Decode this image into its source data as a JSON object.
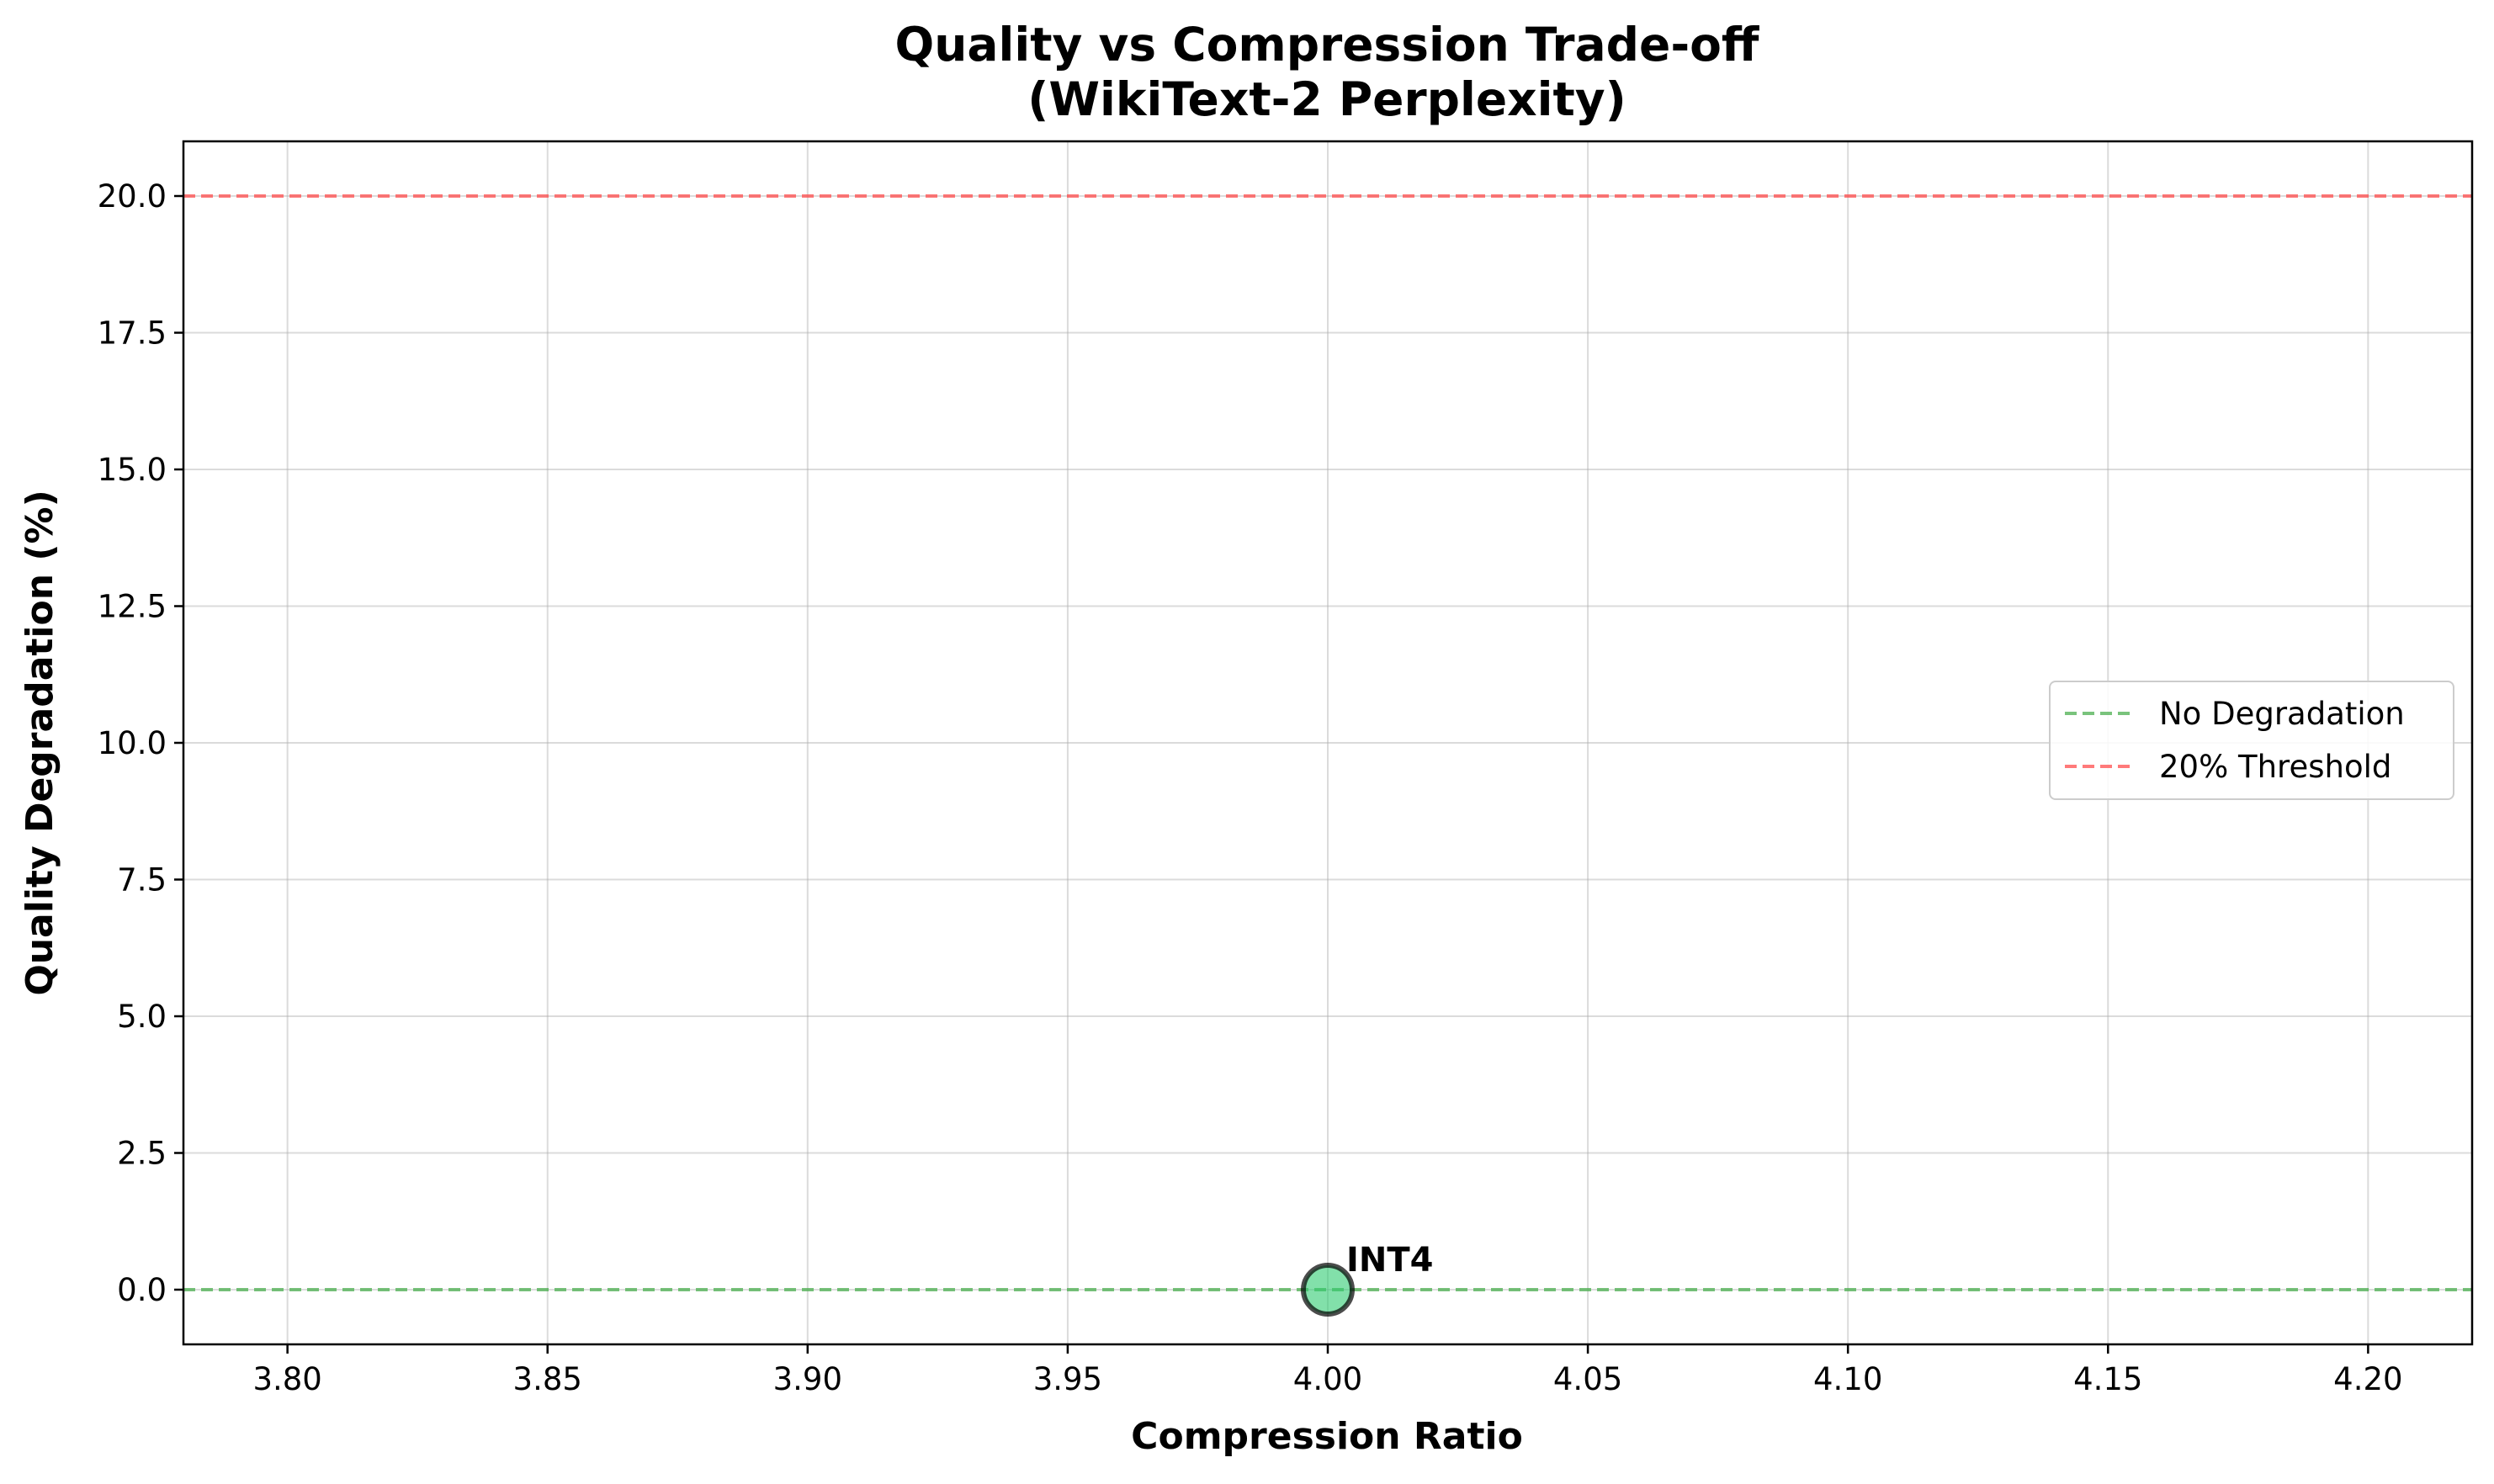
{
  "chart_data": {
    "type": "scatter",
    "title_lines": [
      "Quality vs Compression Trade-off",
      "(WikiText-2 Perplexity)"
    ],
    "xlabel": "Compression Ratio",
    "ylabel": "Quality Degradation (%)",
    "xlim": [
      3.78,
      4.22
    ],
    "ylim": [
      -1.0,
      21.0
    ],
    "xticks": [
      3.8,
      3.85,
      3.9,
      3.95,
      4.0,
      4.05,
      4.1,
      4.15,
      4.2
    ],
    "xtick_labels": [
      "3.80",
      "3.85",
      "3.90",
      "3.95",
      "4.00",
      "4.05",
      "4.10",
      "4.15",
      "4.20"
    ],
    "yticks": [
      0.0,
      2.5,
      5.0,
      7.5,
      10.0,
      12.5,
      15.0,
      17.5,
      20.0
    ],
    "ytick_labels": [
      "0.0",
      "2.5",
      "5.0",
      "7.5",
      "10.0",
      "12.5",
      "15.0",
      "17.5",
      "20.0"
    ],
    "grid": true,
    "points": [
      {
        "label": "INT4",
        "x": 4.0,
        "y": 0.0,
        "color": "#2ecc71",
        "edge_color": "#000000"
      }
    ],
    "reference_lines": [
      {
        "name": "No Degradation",
        "y": 0.0,
        "color": "#4caf50",
        "style": "dashed"
      },
      {
        "name": "20% Threshold",
        "y": 20.0,
        "color": "#ff4d4d",
        "style": "dashed"
      }
    ],
    "legend_position": "center-right"
  }
}
